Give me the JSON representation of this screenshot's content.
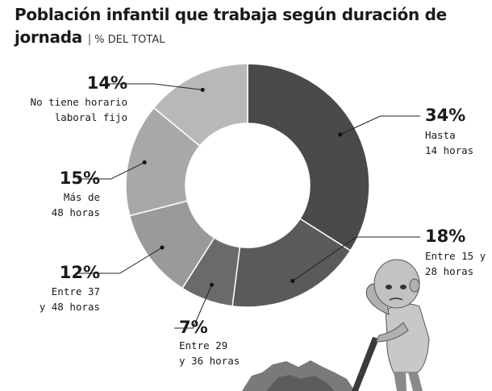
{
  "header": {
    "title": "Población infantil que trabaja según duración de jornada",
    "subtitle": "% DEL TOTAL"
  },
  "chart_data": {
    "type": "pie",
    "variant": "donut",
    "title": "Población infantil que trabaja según duración de jornada",
    "subtitle": "% DEL TOTAL",
    "unit": "%",
    "slices": [
      {
        "label": "Hasta 14 horas",
        "value": 34,
        "display": "34%",
        "lines": [
          "Hasta",
          "14 horas"
        ],
        "color": "#4a4a4a"
      },
      {
        "label": "Entre 15 y 28 horas",
        "value": 18,
        "display": "18%",
        "lines": [
          "Entre 15 y",
          "28 horas"
        ],
        "color": "#5a5a5a"
      },
      {
        "label": "Entre 29 y 36 horas",
        "value": 7,
        "display": "7%",
        "lines": [
          "Entre 29",
          "y 36 horas"
        ],
        "color": "#6a6a6a"
      },
      {
        "label": "Entre 37 y 48 horas",
        "value": 12,
        "display": "12%",
        "lines": [
          "Entre 37",
          "y 48 horas"
        ],
        "color": "#9a9a9a"
      },
      {
        "label": "Más de 48 horas",
        "value": 15,
        "display": "15%",
        "lines": [
          "Más de",
          "48 horas"
        ],
        "color": "#a8a8a8"
      },
      {
        "label": "No tiene horario laboral fijo",
        "value": 14,
        "display": "14%",
        "lines": [
          "No tiene horario",
          "laboral fijo"
        ],
        "color": "#b8b8b8"
      }
    ]
  }
}
